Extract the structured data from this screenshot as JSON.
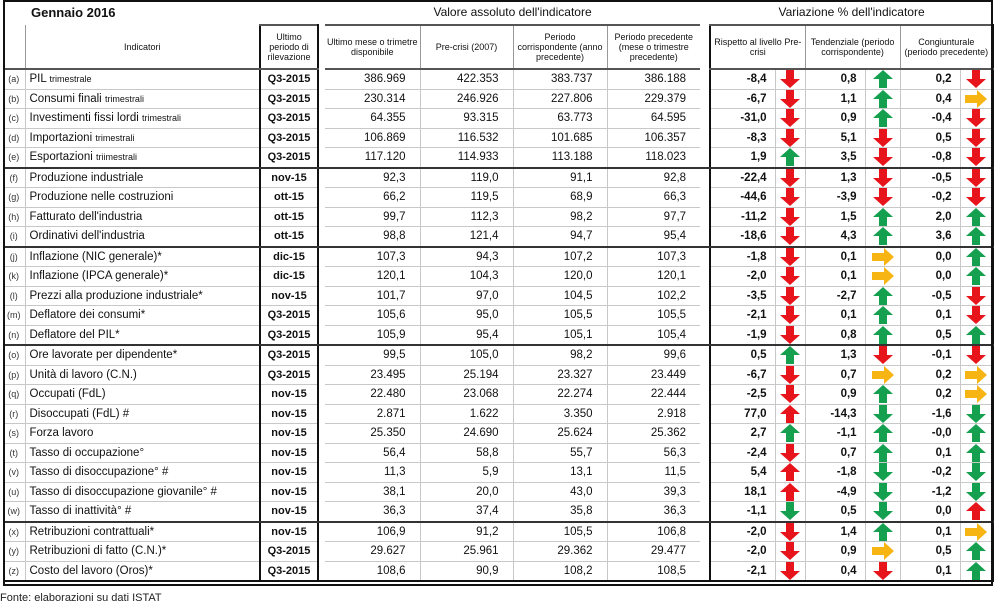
{
  "title": "Gennaio 2016",
  "group_headers": {
    "absolute": "Valore assoluto dell'indicatore",
    "variation": "Variazione % dell'indicatore"
  },
  "columns": {
    "indicator": "Indicatori",
    "period": "Ultimo periodo di rilevazione",
    "last": "Ultimo mese o trimetre disponibile",
    "precrisis": "Pre-crisi (2007)",
    "corresponding": "Periodo corrispondente (anno precedente)",
    "previous": "Periodo precedente (mese o trimestre precedente)",
    "var_precrisis": "Rispetto al livello Pre-crisi",
    "var_trend": "Tendenziale (periodo corrispondente)",
    "var_cycle": "Congiunturale (periodo precedente)"
  },
  "colors": {
    "red": "#e8141b",
    "green": "#14a04f",
    "yellow": "#f7b514"
  },
  "rows": [
    {
      "letter": "(a)",
      "name": "PIL",
      "suffix": "trimestrale",
      "period": "Q3-2015",
      "last": "386.969",
      "pre": "422.353",
      "corr": "383.737",
      "prev": "386.188",
      "v1": [
        "-8,4",
        "down",
        "red"
      ],
      "v2": [
        "0,8",
        "up",
        "green"
      ],
      "v3": [
        "0,2",
        "down",
        "red"
      ]
    },
    {
      "letter": "(b)",
      "name": "Consumi finali",
      "suffix": "trimestrali",
      "period": "Q3-2015",
      "last": "230.314",
      "pre": "246.926",
      "corr": "227.806",
      "prev": "229.379",
      "v1": [
        "-6,7",
        "down",
        "red"
      ],
      "v2": [
        "1,1",
        "up",
        "green"
      ],
      "v3": [
        "0,4",
        "right",
        "yellow"
      ]
    },
    {
      "letter": "(c)",
      "name": "Investimenti fissi lordi",
      "suffix": "trimestrali",
      "period": "Q3-2015",
      "last": "64.355",
      "pre": "93.315",
      "corr": "63.773",
      "prev": "64.595",
      "v1": [
        "-31,0",
        "down",
        "red"
      ],
      "v2": [
        "0,9",
        "up",
        "green"
      ],
      "v3": [
        "-0,4",
        "down",
        "red"
      ]
    },
    {
      "letter": "(d)",
      "name": "Importazioni",
      "suffix": "trimestrali",
      "period": "Q3-2015",
      "last": "106.869",
      "pre": "116.532",
      "corr": "101.685",
      "prev": "106.357",
      "v1": [
        "-8,3",
        "down",
        "red"
      ],
      "v2": [
        "5,1",
        "down",
        "red"
      ],
      "v3": [
        "0,5",
        "down",
        "red"
      ]
    },
    {
      "letter": "(e)",
      "name": "Esportazioni",
      "suffix": "triimestrali",
      "period": "Q3-2015",
      "last": "117.120",
      "pre": "114.933",
      "corr": "113.188",
      "prev": "118.023",
      "v1": [
        "1,9",
        "up",
        "green"
      ],
      "v2": [
        "3,5",
        "down",
        "red"
      ],
      "v3": [
        "-0,8",
        "down",
        "red"
      ],
      "group_end": true
    },
    {
      "letter": "(f)",
      "name": "Produzione industriale",
      "suffix": "",
      "period": "nov-15",
      "last": "92,3",
      "pre": "119,0",
      "corr": "91,1",
      "prev": "92,8",
      "v1": [
        "-22,4",
        "down",
        "red"
      ],
      "v2": [
        "1,3",
        "down",
        "red"
      ],
      "v3": [
        "-0,5",
        "down",
        "red"
      ]
    },
    {
      "letter": "(g)",
      "name": "Produzione nelle costruzioni",
      "suffix": "",
      "period": "ott-15",
      "last": "66,2",
      "pre": "119,5",
      "corr": "68,9",
      "prev": "66,3",
      "v1": [
        "-44,6",
        "down",
        "red"
      ],
      "v2": [
        "-3,9",
        "down",
        "red"
      ],
      "v3": [
        "-0,2",
        "down",
        "red"
      ]
    },
    {
      "letter": "(h)",
      "name": "Fatturato dell'industria",
      "suffix": "",
      "period": "ott-15",
      "last": "99,7",
      "pre": "112,3",
      "corr": "98,2",
      "prev": "97,7",
      "v1": [
        "-11,2",
        "down",
        "red"
      ],
      "v2": [
        "1,5",
        "up",
        "green"
      ],
      "v3": [
        "2,0",
        "up",
        "green"
      ]
    },
    {
      "letter": "(i)",
      "name": "Ordinativi dell'industria",
      "suffix": "",
      "period": "ott-15",
      "last": "98,8",
      "pre": "121,4",
      "corr": "94,7",
      "prev": "95,4",
      "v1": [
        "-18,6",
        "down",
        "red"
      ],
      "v2": [
        "4,3",
        "up",
        "green"
      ],
      "v3": [
        "3,6",
        "up",
        "green"
      ],
      "group_end": true
    },
    {
      "letter": "(j)",
      "name": "Inflazione (NIC generale)*",
      "suffix": "",
      "period": "dic-15",
      "last": "107,3",
      "pre": "94,3",
      "corr": "107,2",
      "prev": "107,3",
      "v1": [
        "-1,8",
        "down",
        "red"
      ],
      "v2": [
        "0,1",
        "right",
        "yellow"
      ],
      "v3": [
        "0,0",
        "up",
        "green"
      ]
    },
    {
      "letter": "(k)",
      "name": "Inflazione (IPCA generale)*",
      "suffix": "",
      "period": "dic-15",
      "last": "120,1",
      "pre": "104,3",
      "corr": "120,0",
      "prev": "120,1",
      "v1": [
        "-2,0",
        "down",
        "red"
      ],
      "v2": [
        "0,1",
        "right",
        "yellow"
      ],
      "v3": [
        "0,0",
        "up",
        "green"
      ]
    },
    {
      "letter": "(l)",
      "name": "Prezzi alla produzione industriale*",
      "suffix": "",
      "period": "nov-15",
      "last": "101,7",
      "pre": "97,0",
      "corr": "104,5",
      "prev": "102,2",
      "v1": [
        "-3,5",
        "down",
        "red"
      ],
      "v2": [
        "-2,7",
        "up",
        "green"
      ],
      "v3": [
        "-0,5",
        "down",
        "red"
      ]
    },
    {
      "letter": "(m)",
      "name": "Deflatore dei consumi*",
      "suffix": "",
      "period": "Q3-2015",
      "last": "105,6",
      "pre": "95,0",
      "corr": "105,5",
      "prev": "105,5",
      "v1": [
        "-2,1",
        "down",
        "red"
      ],
      "v2": [
        "0,1",
        "up",
        "green"
      ],
      "v3": [
        "0,1",
        "down",
        "red"
      ]
    },
    {
      "letter": "(n)",
      "name": "Deflatore del PIL*",
      "suffix": "",
      "period": "Q3-2015",
      "last": "105,9",
      "pre": "95,4",
      "corr": "105,1",
      "prev": "105,4",
      "v1": [
        "-1,9",
        "down",
        "red"
      ],
      "v2": [
        "0,8",
        "up",
        "green"
      ],
      "v3": [
        "0,5",
        "up",
        "green"
      ],
      "group_end": true
    },
    {
      "letter": "(o)",
      "name": "Ore lavorate per dipendente*",
      "suffix": "",
      "period": "Q3-2015",
      "last": "99,5",
      "pre": "105,0",
      "corr": "98,2",
      "prev": "99,6",
      "v1": [
        "0,5",
        "up",
        "green"
      ],
      "v2": [
        "1,3",
        "down",
        "red"
      ],
      "v3": [
        "-0,1",
        "down",
        "red"
      ]
    },
    {
      "letter": "(p)",
      "name": "Unità di lavoro (C.N.)",
      "suffix": "",
      "period": "Q3-2015",
      "last": "23.495",
      "pre": "25.194",
      "corr": "23.327",
      "prev": "23.449",
      "v1": [
        "-6,7",
        "down",
        "red"
      ],
      "v2": [
        "0,7",
        "right",
        "yellow"
      ],
      "v3": [
        "0,2",
        "right",
        "yellow"
      ]
    },
    {
      "letter": "(q)",
      "name": "Occupati (FdL)",
      "suffix": "",
      "period": "nov-15",
      "last": "22.480",
      "pre": "23.068",
      "corr": "22.274",
      "prev": "22.444",
      "v1": [
        "-2,5",
        "down",
        "red"
      ],
      "v2": [
        "0,9",
        "up",
        "green"
      ],
      "v3": [
        "0,2",
        "right",
        "yellow"
      ]
    },
    {
      "letter": "(r)",
      "name": "Disoccupati (FdL) #",
      "suffix": "",
      "period": "nov-15",
      "last": "2.871",
      "pre": "1.622",
      "corr": "3.350",
      "prev": "2.918",
      "v1": [
        "77,0",
        "up",
        "red"
      ],
      "v2": [
        "-14,3",
        "down",
        "green"
      ],
      "v3": [
        "-1,6",
        "down",
        "green"
      ]
    },
    {
      "letter": "(s)",
      "name": "Forza lavoro",
      "suffix": "",
      "period": "nov-15",
      "last": "25.350",
      "pre": "24.690",
      "corr": "25.624",
      "prev": "25.362",
      "v1": [
        "2,7",
        "up",
        "green"
      ],
      "v2": [
        "-1,1",
        "up",
        "green"
      ],
      "v3": [
        "-0,0",
        "up",
        "green"
      ]
    },
    {
      "letter": "(t)",
      "name": "Tasso di occupazione°",
      "suffix": "",
      "period": "nov-15",
      "last": "56,4",
      "pre": "58,8",
      "corr": "55,7",
      "prev": "56,3",
      "v1": [
        "-2,4",
        "down",
        "red"
      ],
      "v2": [
        "0,7",
        "up",
        "green"
      ],
      "v3": [
        "0,1",
        "up",
        "green"
      ]
    },
    {
      "letter": "(v)",
      "name": "Tasso di disoccupazione° #",
      "suffix": "",
      "period": "nov-15",
      "last": "11,3",
      "pre": "5,9",
      "corr": "13,1",
      "prev": "11,5",
      "v1": [
        "5,4",
        "up",
        "red"
      ],
      "v2": [
        "-1,8",
        "down",
        "green"
      ],
      "v3": [
        "-0,2",
        "down",
        "green"
      ]
    },
    {
      "letter": "(u)",
      "name": "Tasso di disoccupazione giovanile° #",
      "suffix": "",
      "period": "nov-15",
      "last": "38,1",
      "pre": "20,0",
      "corr": "43,0",
      "prev": "39,3",
      "v1": [
        "18,1",
        "up",
        "red"
      ],
      "v2": [
        "-4,9",
        "down",
        "green"
      ],
      "v3": [
        "-1,2",
        "down",
        "green"
      ]
    },
    {
      "letter": "(w)",
      "name": "Tasso di inattività° #",
      "suffix": "",
      "period": "nov-15",
      "last": "36,3",
      "pre": "37,4",
      "corr": "35,8",
      "prev": "36,3",
      "v1": [
        "-1,1",
        "down",
        "green"
      ],
      "v2": [
        "0,5",
        "down",
        "green"
      ],
      "v3": [
        "0,0",
        "up",
        "red"
      ],
      "group_end": true
    },
    {
      "letter": "(x)",
      "name": "Retribuzioni contrattuali*",
      "suffix": "",
      "period": "nov-15",
      "last": "106,9",
      "pre": "91,2",
      "corr": "105,5",
      "prev": "106,8",
      "v1": [
        "-2,0",
        "down",
        "red"
      ],
      "v2": [
        "1,4",
        "up",
        "green"
      ],
      "v3": [
        "0,1",
        "right",
        "yellow"
      ]
    },
    {
      "letter": "(y)",
      "name": "Retribuzioni di fatto (C.N.)*",
      "suffix": "",
      "period": "Q3-2015",
      "last": "29.627",
      "pre": "25.961",
      "corr": "29.362",
      "prev": "29.477",
      "v1": [
        "-2,0",
        "down",
        "red"
      ],
      "v2": [
        "0,9",
        "right",
        "yellow"
      ],
      "v3": [
        "0,5",
        "up",
        "green"
      ]
    },
    {
      "letter": "(z)",
      "name": "Costo del lavoro (Oros)*",
      "suffix": "",
      "period": "Q3-2015",
      "last": "108,6",
      "pre": "90,9",
      "corr": "108,2",
      "prev": "108,5",
      "v1": [
        "-2,1",
        "down",
        "red"
      ],
      "v2": [
        "0,4",
        "down",
        "red"
      ],
      "v3": [
        "0,1",
        "up",
        "green"
      ]
    }
  ],
  "footer": "Fonte: elaborazioni su dati ISTAT"
}
